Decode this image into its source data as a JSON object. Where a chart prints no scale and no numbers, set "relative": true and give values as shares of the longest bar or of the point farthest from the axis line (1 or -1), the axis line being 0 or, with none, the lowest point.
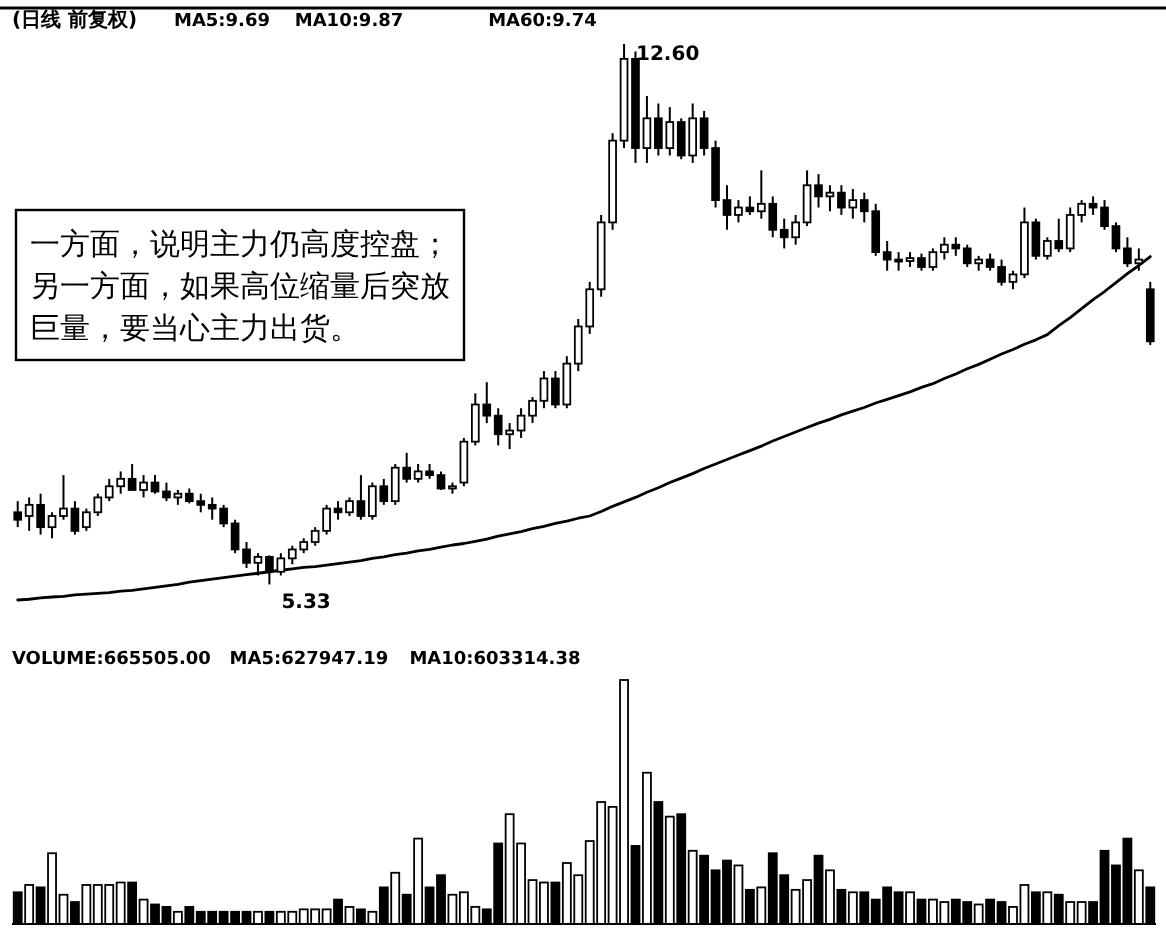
{
  "chart_data": [
    {
      "type": "candlestick",
      "title": "(日线 前复权)",
      "categories": [
        null,
        null,
        null,
        null,
        null,
        null,
        null,
        null,
        null,
        null,
        null,
        null,
        null,
        null,
        null,
        null,
        null,
        null,
        null,
        null,
        null,
        null,
        null,
        null,
        null,
        null,
        null,
        null,
        null,
        null,
        null,
        null,
        null,
        null,
        null,
        null,
        null,
        null,
        null,
        null,
        null,
        null,
        null,
        null,
        null,
        null,
        null,
        null,
        null,
        null,
        null,
        null,
        null,
        null,
        null,
        null,
        null,
        null,
        null,
        null,
        null,
        null,
        null,
        null,
        null,
        null,
        null,
        null,
        null,
        null,
        null,
        null,
        null,
        null,
        null,
        null,
        null,
        null,
        null,
        null,
        null,
        null,
        null,
        null,
        null,
        null,
        null,
        null,
        null,
        null,
        null,
        null,
        null,
        null,
        null,
        null,
        null,
        null,
        null,
        null
      ],
      "ohlc": [
        [
          6.3,
          6.45,
          6.1,
          6.2
        ],
        [
          6.25,
          6.5,
          6.05,
          6.4
        ],
        [
          6.4,
          6.55,
          6.0,
          6.1
        ],
        [
          6.1,
          6.3,
          5.95,
          6.25
        ],
        [
          6.25,
          6.8,
          6.2,
          6.35
        ],
        [
          6.35,
          6.45,
          6.0,
          6.05
        ],
        [
          6.1,
          6.35,
          6.05,
          6.3
        ],
        [
          6.3,
          6.55,
          6.25,
          6.5
        ],
        [
          6.5,
          6.75,
          6.45,
          6.65
        ],
        [
          6.65,
          6.85,
          6.55,
          6.75
        ],
        [
          6.75,
          6.95,
          6.6,
          6.6
        ],
        [
          6.6,
          6.8,
          6.5,
          6.7
        ],
        [
          6.7,
          6.8,
          6.55,
          6.58
        ],
        [
          6.58,
          6.7,
          6.45,
          6.5
        ],
        [
          6.5,
          6.6,
          6.4,
          6.55
        ],
        [
          6.55,
          6.62,
          6.42,
          6.45
        ],
        [
          6.45,
          6.55,
          6.3,
          6.4
        ],
        [
          6.4,
          6.5,
          6.2,
          6.35
        ],
        [
          6.35,
          6.4,
          6.1,
          6.15
        ],
        [
          6.15,
          6.2,
          5.75,
          5.8
        ],
        [
          5.8,
          5.9,
          5.55,
          5.62
        ],
        [
          5.62,
          5.75,
          5.45,
          5.7
        ],
        [
          5.7,
          5.72,
          5.33,
          5.5
        ],
        [
          5.5,
          5.75,
          5.45,
          5.68
        ],
        [
          5.68,
          5.85,
          5.6,
          5.8
        ],
        [
          5.8,
          5.95,
          5.75,
          5.9
        ],
        [
          5.9,
          6.1,
          5.85,
          6.05
        ],
        [
          6.05,
          6.4,
          6.0,
          6.35
        ],
        [
          6.35,
          6.45,
          6.2,
          6.3
        ],
        [
          6.3,
          6.5,
          6.25,
          6.45
        ],
        [
          6.45,
          6.8,
          6.2,
          6.25
        ],
        [
          6.25,
          6.7,
          6.2,
          6.65
        ],
        [
          6.65,
          6.75,
          6.4,
          6.45
        ],
        [
          6.45,
          6.95,
          6.4,
          6.9
        ],
        [
          6.9,
          7.1,
          6.7,
          6.75
        ],
        [
          6.75,
          6.95,
          6.7,
          6.85
        ],
        [
          6.85,
          6.95,
          6.75,
          6.8
        ],
        [
          6.8,
          6.85,
          6.6,
          6.62
        ],
        [
          6.62,
          6.7,
          6.55,
          6.65
        ],
        [
          6.7,
          7.3,
          6.65,
          7.25
        ],
        [
          7.25,
          7.9,
          7.2,
          7.75
        ],
        [
          7.75,
          8.05,
          7.5,
          7.6
        ],
        [
          7.6,
          7.7,
          7.2,
          7.35
        ],
        [
          7.35,
          7.5,
          7.15,
          7.4
        ],
        [
          7.4,
          7.7,
          7.3,
          7.6
        ],
        [
          7.6,
          7.85,
          7.5,
          7.8
        ],
        [
          7.8,
          8.2,
          7.7,
          8.1
        ],
        [
          8.1,
          8.2,
          7.7,
          7.75
        ],
        [
          7.75,
          8.4,
          7.7,
          8.3
        ],
        [
          8.3,
          8.9,
          8.2,
          8.8
        ],
        [
          8.8,
          9.4,
          8.7,
          9.3
        ],
        [
          9.3,
          10.3,
          9.2,
          10.2
        ],
        [
          10.2,
          11.4,
          10.1,
          11.3
        ],
        [
          11.3,
          12.6,
          11.2,
          12.4
        ],
        [
          12.4,
          12.5,
          11.0,
          11.2
        ],
        [
          11.2,
          11.9,
          11.0,
          11.6
        ],
        [
          11.6,
          11.8,
          11.1,
          11.2
        ],
        [
          11.2,
          11.75,
          11.1,
          11.55
        ],
        [
          11.55,
          11.6,
          11.05,
          11.1
        ],
        [
          11.1,
          11.8,
          11.0,
          11.6
        ],
        [
          11.6,
          11.7,
          11.1,
          11.2
        ],
        [
          11.2,
          11.3,
          10.4,
          10.5
        ],
        [
          10.5,
          10.7,
          10.1,
          10.3
        ],
        [
          10.3,
          10.5,
          10.2,
          10.4
        ],
        [
          10.4,
          10.55,
          10.3,
          10.35
        ],
        [
          10.35,
          10.9,
          10.25,
          10.45
        ],
        [
          10.45,
          10.55,
          10.0,
          10.1
        ],
        [
          10.1,
          10.25,
          9.85,
          10.0
        ],
        [
          10.0,
          10.3,
          9.9,
          10.2
        ],
        [
          10.2,
          10.9,
          10.15,
          10.7
        ],
        [
          10.7,
          10.85,
          10.4,
          10.55
        ],
        [
          10.55,
          10.7,
          10.35,
          10.6
        ],
        [
          10.6,
          10.7,
          10.3,
          10.4
        ],
        [
          10.4,
          10.65,
          10.25,
          10.5
        ],
        [
          10.5,
          10.6,
          10.2,
          10.35
        ],
        [
          10.35,
          10.45,
          9.75,
          9.8
        ],
        [
          9.8,
          9.95,
          9.55,
          9.7
        ],
        [
          9.7,
          9.8,
          9.55,
          9.68
        ],
        [
          9.68,
          9.8,
          9.6,
          9.72
        ],
        [
          9.72,
          9.78,
          9.55,
          9.6
        ],
        [
          9.6,
          9.85,
          9.55,
          9.8
        ],
        [
          9.8,
          10.0,
          9.7,
          9.9
        ],
        [
          9.9,
          10.0,
          9.75,
          9.85
        ],
        [
          9.85,
          9.9,
          9.6,
          9.65
        ],
        [
          9.65,
          9.75,
          9.55,
          9.7
        ],
        [
          9.7,
          9.78,
          9.55,
          9.6
        ],
        [
          9.6,
          9.7,
          9.35,
          9.4
        ],
        [
          9.4,
          9.55,
          9.3,
          9.5
        ],
        [
          9.5,
          10.4,
          9.45,
          10.2
        ],
        [
          10.2,
          10.25,
          9.7,
          9.75
        ],
        [
          9.75,
          10.0,
          9.7,
          9.95
        ],
        [
          9.95,
          10.25,
          9.8,
          9.85
        ],
        [
          9.85,
          10.4,
          9.8,
          10.3
        ],
        [
          10.3,
          10.5,
          10.2,
          10.45
        ],
        [
          10.45,
          10.55,
          10.3,
          10.4
        ],
        [
          10.4,
          10.5,
          10.1,
          10.15
        ],
        [
          10.15,
          10.2,
          9.8,
          9.85
        ],
        [
          9.85,
          10.0,
          9.6,
          9.65
        ],
        [
          9.65,
          9.85,
          9.55,
          9.7
        ],
        [
          9.3,
          9.4,
          8.55,
          8.6
        ]
      ],
      "series": [
        {
          "name": "MA60:9.74",
          "type": "line",
          "color": "#000000",
          "values": [
            5.12,
            5.13,
            5.15,
            5.16,
            5.17,
            5.19,
            5.2,
            5.21,
            5.22,
            5.24,
            5.25,
            5.27,
            5.29,
            5.31,
            5.33,
            5.36,
            5.38,
            5.4,
            5.42,
            5.44,
            5.46,
            5.48,
            5.5,
            5.52,
            5.54,
            5.56,
            5.57,
            5.59,
            5.61,
            5.63,
            5.65,
            5.68,
            5.7,
            5.73,
            5.75,
            5.78,
            5.8,
            5.83,
            5.86,
            5.88,
            5.91,
            5.94,
            5.98,
            6.01,
            6.04,
            6.08,
            6.11,
            6.15,
            6.18,
            6.22,
            6.25,
            6.31,
            6.38,
            6.44,
            6.5,
            6.57,
            6.63,
            6.7,
            6.76,
            6.82,
            6.89,
            6.95,
            7.01,
            7.07,
            7.13,
            7.19,
            7.26,
            7.32,
            7.38,
            7.44,
            7.5,
            7.55,
            7.61,
            7.66,
            7.71,
            7.77,
            7.82,
            7.87,
            7.92,
            7.98,
            8.03,
            8.1,
            8.16,
            8.23,
            8.29,
            8.36,
            8.43,
            8.49,
            8.56,
            8.62,
            8.69,
            8.81,
            8.92,
            9.04,
            9.16,
            9.27,
            9.39,
            9.51,
            9.62,
            9.74
          ]
        }
      ],
      "annotations": [
        "一方面，说明主力仍高度控盘；另一方面，如果高位缩量后突放巨量，要当心主力出货。",
        "MA5:9.69",
        "MA10:9.87",
        "12.60",
        "5.33"
      ]
    },
    {
      "type": "bar",
      "relative": true,
      "categories": [
        null,
        null,
        null,
        null,
        null,
        null,
        null,
        null,
        null,
        null,
        null,
        null,
        null,
        null,
        null,
        null,
        null,
        null,
        null,
        null,
        null,
        null,
        null,
        null,
        null,
        null,
        null,
        null,
        null,
        null,
        null,
        null,
        null,
        null,
        null,
        null,
        null,
        null,
        null,
        null,
        null,
        null,
        null,
        null,
        null,
        null,
        null,
        null,
        null,
        null,
        null,
        null,
        null,
        null,
        null,
        null,
        null,
        null,
        null,
        null,
        null,
        null,
        null,
        null,
        null,
        null,
        null,
        null,
        null,
        null,
        null,
        null,
        null,
        null,
        null,
        null,
        null,
        null,
        null,
        null,
        null,
        null,
        null,
        null,
        null,
        null,
        null,
        null,
        null,
        null,
        null,
        null,
        null,
        null,
        null,
        null,
        null,
        null,
        null,
        null
      ],
      "values": [
        0.13,
        0.16,
        0.15,
        0.29,
        0.12,
        0.09,
        0.16,
        0.16,
        0.16,
        0.17,
        0.17,
        0.1,
        0.08,
        0.07,
        0.05,
        0.07,
        0.05,
        0.05,
        0.05,
        0.05,
        0.05,
        0.05,
        0.05,
        0.05,
        0.05,
        0.06,
        0.06,
        0.06,
        0.1,
        0.07,
        0.06,
        0.05,
        0.15,
        0.21,
        0.12,
        0.35,
        0.15,
        0.2,
        0.12,
        0.13,
        0.07,
        0.06,
        0.33,
        0.45,
        0.33,
        0.18,
        0.17,
        0.17,
        0.25,
        0.2,
        0.34,
        0.5,
        0.48,
        1.0,
        0.32,
        0.62,
        0.5,
        0.44,
        0.45,
        0.3,
        0.28,
        0.22,
        0.26,
        0.24,
        0.14,
        0.15,
        0.29,
        0.2,
        0.14,
        0.18,
        0.28,
        0.22,
        0.14,
        0.13,
        0.13,
        0.1,
        0.15,
        0.13,
        0.13,
        0.1,
        0.1,
        0.09,
        0.1,
        0.09,
        0.08,
        0.1,
        0.09,
        0.07,
        0.16,
        0.13,
        0.13,
        0.12,
        0.09,
        0.09,
        0.09,
        0.3,
        0.24,
        0.35,
        0.22,
        0.15
      ],
      "colors": [
        "#000000",
        "#ffffff",
        "#000000",
        "#ffffff",
        "#ffffff",
        "#000000",
        "#ffffff",
        "#ffffff",
        "#ffffff",
        "#ffffff",
        "#000000",
        "#ffffff",
        "#000000",
        "#000000",
        "#ffffff",
        "#000000",
        "#000000",
        "#000000",
        "#000000",
        "#000000",
        "#000000",
        "#ffffff",
        "#000000",
        "#ffffff",
        "#ffffff",
        "#ffffff",
        "#ffffff",
        "#ffffff",
        "#000000",
        "#ffffff",
        "#000000",
        "#ffffff",
        "#000000",
        "#ffffff",
        "#000000",
        "#ffffff",
        "#000000",
        "#000000",
        "#ffffff",
        "#ffffff",
        "#ffffff",
        "#000000",
        "#000000",
        "#ffffff",
        "#ffffff",
        "#ffffff",
        "#ffffff",
        "#000000",
        "#ffffff",
        "#ffffff",
        "#ffffff",
        "#ffffff",
        "#ffffff",
        "#ffffff",
        "#000000",
        "#ffffff",
        "#000000",
        "#ffffff",
        "#000000",
        "#ffffff",
        "#000000",
        "#000000",
        "#000000",
        "#ffffff",
        "#000000",
        "#ffffff",
        "#000000",
        "#000000",
        "#ffffff",
        "#ffffff",
        "#000000",
        "#ffffff",
        "#000000",
        "#ffffff",
        "#000000",
        "#000000",
        "#000000",
        "#000000",
        "#ffffff",
        "#000000",
        "#ffffff",
        "#ffffff",
        "#000000",
        "#000000",
        "#ffffff",
        "#000000",
        "#000000",
        "#ffffff",
        "#ffffff",
        "#000000",
        "#ffffff",
        "#000000",
        "#ffffff",
        "#ffffff",
        "#000000",
        "#000000",
        "#000000",
        "#000000",
        "#ffffff",
        "#000000"
      ],
      "annotations": [
        "VOLUME:665505.00",
        "MA5:627947.19",
        "MA10:603314.38"
      ]
    }
  ]
}
